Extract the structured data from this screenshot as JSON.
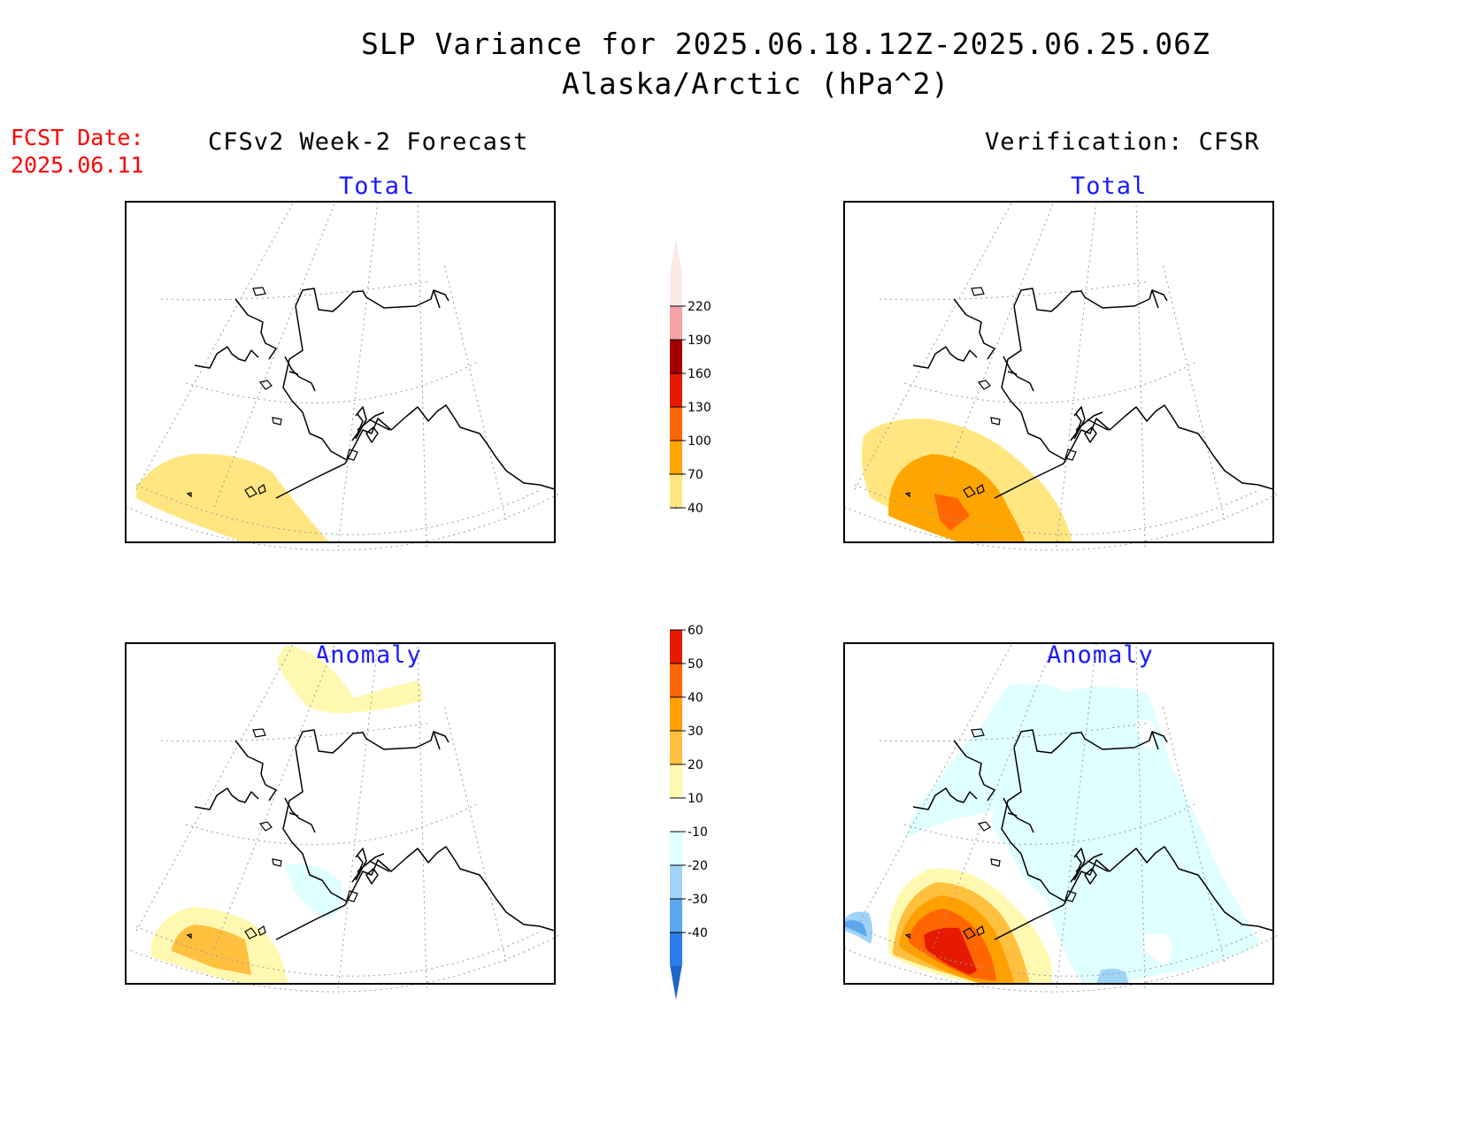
{
  "title": {
    "line1": "SLP Variance for 2025.06.18.12Z-2025.06.25.06Z",
    "line2": "Alaska/Arctic (hPa^2)"
  },
  "fcst": {
    "label": "FCST Date:",
    "date": "2025.06.11"
  },
  "columns": {
    "left": "CFSv2 Week-2 Forecast",
    "right": "Verification: CFSR"
  },
  "panels": [
    {
      "id": "forecast-total",
      "subtitle": "Total"
    },
    {
      "id": "verification-total",
      "subtitle": "Total"
    },
    {
      "id": "forecast-anomaly",
      "subtitle": "Anomaly"
    },
    {
      "id": "verification-anomaly",
      "subtitle": "Anomaly"
    }
  ],
  "legend_total": {
    "ticks": [
      "40",
      "70",
      "100",
      "130",
      "160",
      "190",
      "220"
    ],
    "colors": [
      "#ffe680",
      "#ffa500",
      "#ff6600",
      "#e61a00",
      "#a50000",
      "#f4a3a8",
      "#fde8e8"
    ],
    "open_end_colors": {
      "low": "#ffffff",
      "high": "#fde8e8"
    }
  },
  "legend_anomaly": {
    "ticks": [
      "-40",
      "-30",
      "-20",
      "-10",
      "10",
      "20",
      "30",
      "40",
      "50",
      "60"
    ],
    "colors": [
      "#2b7de9",
      "#5aa7f0",
      "#9fd3f7",
      "#e0ffff",
      "#ffffff",
      "#fff8b0",
      "#ffc040",
      "#ffa000",
      "#ff6600",
      "#e61a00"
    ],
    "open_end_colors": {
      "low": "#1e64c8",
      "high": "#a50000"
    }
  }
}
